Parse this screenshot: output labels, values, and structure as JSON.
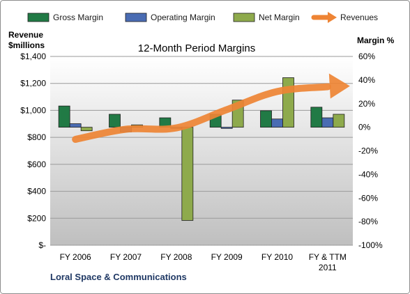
{
  "chart_data": {
    "type": "bar",
    "title": "12-Month Period Margins",
    "company": "Loral Space & Communications",
    "y_left_label_line1": "Revenue",
    "y_left_label_line2": "$millions",
    "y_right_label": "Margin %",
    "categories": [
      {
        "line1": "FY 2006",
        "line2": ""
      },
      {
        "line1": "FY 2007",
        "line2": ""
      },
      {
        "line1": "FY 2008",
        "line2": ""
      },
      {
        "line1": "FY 2009",
        "line2": ""
      },
      {
        "line1": "FY 2010",
        "line2": ""
      },
      {
        "line1": "FY & TTM",
        "line2": "2011"
      }
    ],
    "left_axis": {
      "min": 0,
      "max": 1400,
      "step": 200,
      "tick_labels": [
        "$-",
        "$200",
        "$400",
        "$600",
        "$800",
        "$1,000",
        "$1,200",
        "$1,400"
      ]
    },
    "right_axis": {
      "min": -100,
      "max": 60,
      "step": 20,
      "tick_labels": [
        "-100%",
        "-80%",
        "-60%",
        "-40%",
        "-20%",
        "0%",
        "20%",
        "40%",
        "60%"
      ]
    },
    "series": [
      {
        "name": "Gross Margin",
        "axis": "right",
        "color": "#217a45",
        "values": [
          18,
          11,
          8,
          11,
          14,
          17
        ]
      },
      {
        "name": "Operating Margin",
        "axis": "right",
        "color": "#4a6cb3",
        "values": [
          3,
          -4,
          -1,
          -1,
          7,
          8
        ]
      },
      {
        "name": "Net Margin",
        "axis": "right",
        "color": "#8eaa4c",
        "values": [
          -3,
          2,
          -79,
          23,
          42,
          11
        ]
      },
      {
        "name": "Revenues",
        "axis": "left",
        "type": "line",
        "color": "#ee8434",
        "values": [
          785,
          860,
          870,
          1005,
          1140,
          1175
        ]
      }
    ],
    "legend_position": "top",
    "grid": true
  }
}
